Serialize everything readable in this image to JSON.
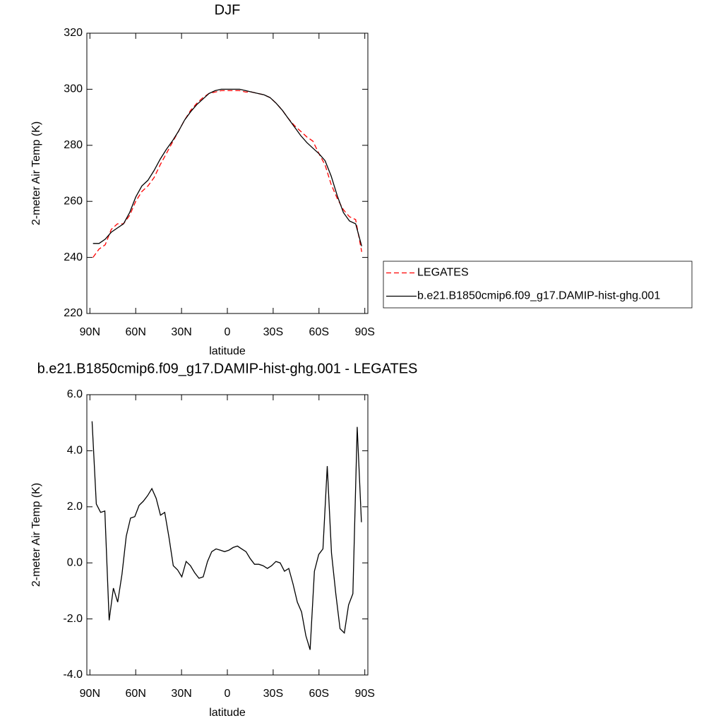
{
  "chart_data": [
    {
      "type": "line",
      "title": "DJF",
      "xlabel": "latitude",
      "ylabel": "2-meter Air Temp (K)",
      "x": [
        88,
        84,
        80,
        76,
        72,
        68,
        64,
        60,
        56,
        52,
        48,
        44,
        40,
        36,
        32,
        28,
        24,
        20,
        16,
        12,
        8,
        4,
        0,
        -4,
        -8,
        -12,
        -16,
        -20,
        -24,
        -28,
        -32,
        -36,
        -40,
        -44,
        -48,
        -52,
        -56,
        -60,
        -64,
        -68,
        -72,
        -76,
        -80,
        -84,
        -88
      ],
      "series": [
        {
          "name": "LEGATES",
          "color": "#ff0000",
          "linestyle": "dashed",
          "values": [
            240,
            243,
            244.5,
            250,
            252,
            252,
            255,
            260,
            263.5,
            265.5,
            268.5,
            273,
            277,
            281,
            285,
            289,
            292.5,
            295,
            297,
            298.5,
            299,
            299.5,
            299.5,
            299.5,
            299.5,
            299,
            299,
            298.5,
            298,
            297,
            295,
            292.5,
            289.5,
            287,
            285,
            283,
            281.5,
            277,
            273,
            266,
            261,
            257,
            254.5,
            253.5,
            242
          ]
        },
        {
          "name": "b.e21.B1850cmip6.f09_g17.DAMIP-hist-ghg.001",
          "color": "#000000",
          "linestyle": "solid",
          "values": [
            245,
            245,
            246.5,
            249,
            250.5,
            252,
            256,
            261.5,
            265.5,
            267.5,
            271,
            275,
            278.5,
            281.5,
            285,
            289,
            292,
            294.5,
            296.5,
            298.5,
            299.5,
            300,
            300,
            300,
            300,
            299.5,
            299,
            298.5,
            298,
            297,
            295,
            292.5,
            289.5,
            286.5,
            283.5,
            281,
            279,
            277,
            274.5,
            269,
            262,
            256,
            253,
            252,
            244
          ]
        }
      ],
      "xlim": [
        92,
        -92
      ],
      "xticks": [
        {
          "value": 90,
          "label": "90N"
        },
        {
          "value": 60,
          "label": "60N"
        },
        {
          "value": 30,
          "label": "30N"
        },
        0,
        {
          "value": -30,
          "label": "30S"
        },
        {
          "value": -60,
          "label": "60S"
        },
        {
          "value": -90,
          "label": "90S"
        }
      ],
      "ylim": [
        220,
        320
      ],
      "yticks": [
        220,
        240,
        260,
        280,
        300,
        320
      ]
    },
    {
      "type": "line",
      "title": "b.e21.B1850cmip6.f09_g17.DAMIP-hist-ghg.001 - LEGATES",
      "xlabel": "latitude",
      "ylabel": "2-meter Air Temp (K)",
      "x": [
        88.6,
        85.8,
        83,
        80.2,
        77.4,
        74.6,
        71.8,
        69,
        66.2,
        63.4,
        60.6,
        57.8,
        55,
        52.2,
        49.4,
        46.6,
        43.8,
        41,
        38.2,
        35.4,
        32.6,
        29.8,
        27,
        24.2,
        21.4,
        18.6,
        15.8,
        13,
        10.2,
        7.4,
        4.6,
        1.8,
        -1,
        -3.8,
        -6.6,
        -9.4,
        -12.2,
        -15,
        -17.8,
        -20.6,
        -23.4,
        -26.2,
        -29,
        -31.8,
        -34.6,
        -37.4,
        -40.2,
        -43,
        -45.8,
        -48.6,
        -51.4,
        -54.2,
        -57,
        -59.8,
        -62.6,
        -65.4,
        -68.2,
        -71,
        -73.8,
        -76.6,
        -79.4,
        -82.2,
        -85,
        -87.8
      ],
      "values": [
        5.05,
        2.1,
        1.8,
        1.85,
        -2.05,
        -0.9,
        -1.4,
        -0.4,
        0.95,
        1.6,
        1.65,
        2.05,
        2.2,
        2.4,
        2.65,
        2.3,
        1.7,
        1.8,
        0.9,
        -0.1,
        -0.25,
        -0.5,
        0.05,
        -0.1,
        -0.35,
        -0.55,
        -0.5,
        0.05,
        0.4,
        0.5,
        0.45,
        0.4,
        0.45,
        0.55,
        0.6,
        0.5,
        0.4,
        0.15,
        -0.05,
        -0.05,
        -0.1,
        -0.2,
        -0.1,
        0.05,
        0,
        -0.3,
        -0.2,
        -0.75,
        -1.4,
        -1.75,
        -2.6,
        -3.1,
        -0.3,
        0.3,
        0.5,
        3.45,
        0.35,
        -1.1,
        -2.35,
        -2.5,
        -1.5,
        -1.1,
        4.85,
        1.45
      ],
      "color": "#000000",
      "xlim": [
        92,
        -92
      ],
      "xticks": [
        {
          "value": 90,
          "label": "90N"
        },
        {
          "value": 60,
          "label": "60N"
        },
        {
          "value": 30,
          "label": "30N"
        },
        0,
        {
          "value": -30,
          "label": "30S"
        },
        {
          "value": -60,
          "label": "60S"
        },
        {
          "value": -90,
          "label": "90S"
        }
      ],
      "ylim": [
        -4,
        6
      ],
      "yticks": [
        {
          "value": -4,
          "label": "-4.0"
        },
        {
          "value": -2,
          "label": "-2.0"
        },
        {
          "value": 0,
          "label": "0.0"
        },
        {
          "value": 2,
          "label": "2.0"
        },
        {
          "value": 4,
          "label": "4.0"
        },
        {
          "value": 6,
          "label": "6.0"
        }
      ]
    }
  ]
}
